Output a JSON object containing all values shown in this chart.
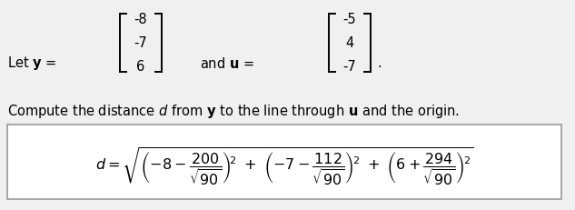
{
  "bg_color": "#f0f0f0",
  "box_color": "#ffffff",
  "box_edge_color": "#999999",
  "text_color": "#000000",
  "y_vec": [
    "-8",
    "-7",
    "6"
  ],
  "u_vec": [
    "-5",
    "4",
    "-7"
  ],
  "font_size_main": 10.5,
  "font_size_formula": 11.5,
  "lw_bracket": 1.4
}
